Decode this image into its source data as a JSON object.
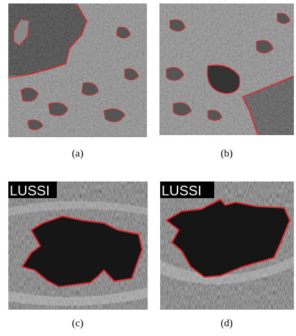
{
  "figures": [
    {
      "caption": "(a)"
    },
    {
      "caption": "(b)"
    },
    {
      "caption": "(c)",
      "label": "LUSSI"
    },
    {
      "caption": "(d)",
      "label": "LUSSI"
    }
  ]
}
